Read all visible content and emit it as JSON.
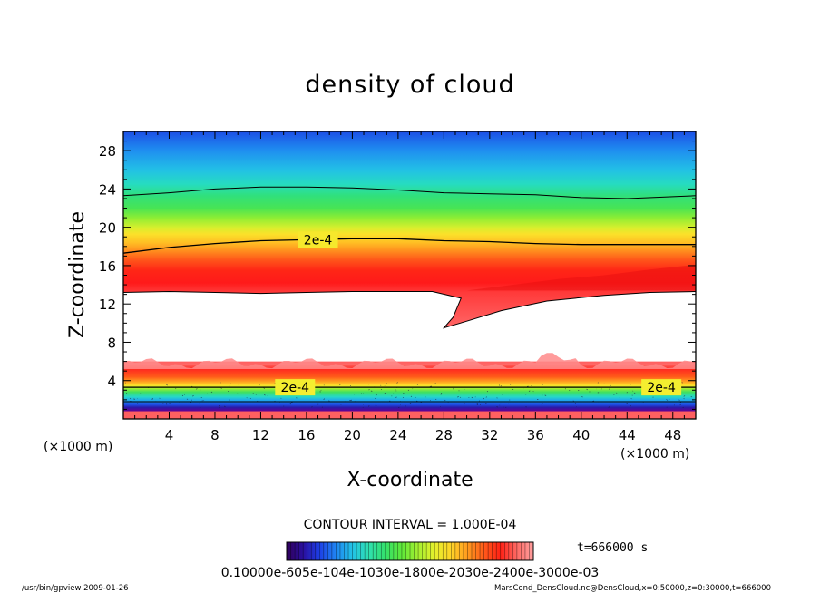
{
  "chart_data": {
    "type": "heatmap",
    "title": "density of cloud",
    "xlabel": "X-coordinate",
    "ylabel": "Z-coordinate",
    "x_unit": "(×1000 m)",
    "y_unit": "(×1000 m)",
    "xlim": [
      0,
      50
    ],
    "ylim": [
      0,
      30
    ],
    "x_ticks": [
      4,
      8,
      12,
      16,
      20,
      24,
      28,
      32,
      36,
      40,
      44,
      48
    ],
    "y_ticks": [
      4,
      8,
      12,
      16,
      20,
      24,
      28
    ],
    "contour_interval_label": "CONTOUR INTERVAL = 1.000E-04",
    "contour_labels": [
      {
        "text": "2e-4",
        "x": 17,
        "z": 18.7
      },
      {
        "text": "2e-4",
        "x": 15,
        "z": 3.3
      },
      {
        "text": "2e-4",
        "x": 47,
        "z": 3.3
      }
    ],
    "upper_cloud_layer": {
      "bottom_edge": [
        [
          0,
          13.2
        ],
        [
          4,
          13.3
        ],
        [
          8,
          13.2
        ],
        [
          12,
          13.1
        ],
        [
          16,
          13.2
        ],
        [
          20,
          13.3
        ],
        [
          24,
          13.3
        ],
        [
          27,
          13.3
        ],
        [
          29.5,
          12.6
        ],
        [
          28.8,
          10.6
        ],
        [
          28,
          9.5
        ],
        [
          30,
          10.2
        ],
        [
          33,
          11.3
        ],
        [
          37,
          12.3
        ],
        [
          42,
          12.9
        ],
        [
          46,
          13.2
        ],
        [
          50,
          13.3
        ]
      ],
      "peak_band_z": [
        13.3,
        16.5
      ],
      "contour_2e-4": [
        [
          0,
          17.3
        ],
        [
          4,
          17.9
        ],
        [
          8,
          18.3
        ],
        [
          12,
          18.6
        ],
        [
          16,
          18.7
        ],
        [
          20,
          18.8
        ],
        [
          24,
          18.8
        ],
        [
          28,
          18.6
        ],
        [
          32,
          18.5
        ],
        [
          36,
          18.3
        ],
        [
          40,
          18.2
        ],
        [
          44,
          18.2
        ],
        [
          48,
          18.2
        ],
        [
          50,
          18.2
        ]
      ],
      "contour_upper": [
        [
          0,
          23.3
        ],
        [
          4,
          23.6
        ],
        [
          8,
          24.0
        ],
        [
          12,
          24.2
        ],
        [
          16,
          24.2
        ],
        [
          20,
          24.1
        ],
        [
          24,
          23.9
        ],
        [
          28,
          23.6
        ],
        [
          32,
          23.5
        ],
        [
          36,
          23.4
        ],
        [
          40,
          23.1
        ],
        [
          44,
          23.0
        ],
        [
          48,
          23.2
        ],
        [
          50,
          23.3
        ]
      ]
    },
    "lower_cloud_layer": {
      "top_edge_z": 5.8,
      "contour_2e-4_z": 3.3,
      "contour_lower_z": 1.8,
      "bottom_z": 0.8
    },
    "colorbar": {
      "colors": [
        "#30005a",
        "#2a0f9e",
        "#1d3fe6",
        "#1f86f2",
        "#22c3e6",
        "#2fe0b0",
        "#34e06a",
        "#5fe83a",
        "#a6f030",
        "#e6f02c",
        "#ffd428",
        "#ff9a1e",
        "#ff5a1a",
        "#ff2216",
        "#ff6a64",
        "#ffa0a0"
      ],
      "tick_text": "0.10000e-605e-104e-1030e-1800e-2030e-2400e-3000e-03"
    },
    "time_label": "t=666000 s"
  },
  "footer": {
    "left": "/usr/bin/gpview   2009-01-26",
    "right": "MarsCond_DensCloud.nc@DensCloud,x=0:50000,z=0:30000,t=666000"
  }
}
